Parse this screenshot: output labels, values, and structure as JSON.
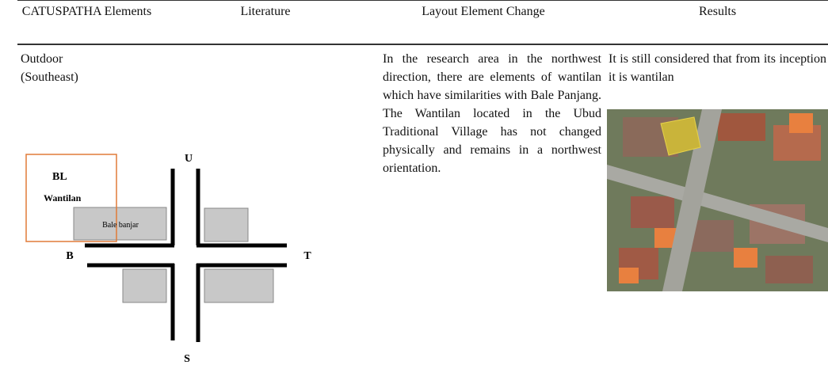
{
  "table": {
    "header": [
      "CATUSPATHA Elements",
      "Literature",
      "Layout Element Change",
      "Results"
    ],
    "rows": [
      [
        "Outdoor (Southeast)",
        "",
        "In the research area in the northwest direction, there are elements of wantilan which have similarities with Bale Panjang. The Wantilan located in the Ubud Traditional Village has not changed physically and remains in a northwest orientation.",
        "It is still considered that from its inception it is wantilan"
      ]
    ]
  },
  "diagram": {
    "north": "U",
    "west": "B",
    "east": "T",
    "south": "S",
    "highlight": "BL",
    "wantilan": "Wantilan",
    "bale": "Bale banjar"
  }
}
